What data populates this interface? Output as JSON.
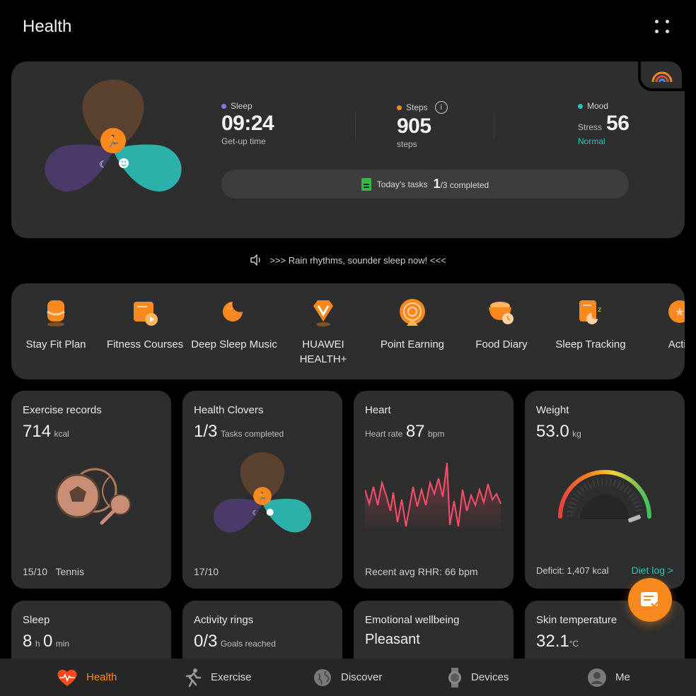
{
  "header": {
    "title": "Health"
  },
  "hero": {
    "sleep": {
      "label": "Sleep",
      "value": "09:24",
      "sub": "Get-up time",
      "color": "#8e6ff0"
    },
    "steps": {
      "label": "Steps",
      "value": "905",
      "sub": "steps",
      "color": "#f7891e"
    },
    "mood": {
      "label": "Mood",
      "stress_label": "Stress",
      "stress_value": "56",
      "status": "Normal",
      "color": "#2fc0b8"
    },
    "tasks": {
      "label": "Today's tasks",
      "count": "1",
      "suffix": "/3 completed"
    }
  },
  "promo": {
    "text": ">>> Rain rhythms, sounder sleep now! <<<"
  },
  "shortcuts": [
    {
      "label": "Stay Fit Plan",
      "icon": "body-shape-icon"
    },
    {
      "label": "Fitness Courses",
      "icon": "video-course-icon"
    },
    {
      "label": "Deep Sleep Music",
      "icon": "sleep-music-icon"
    },
    {
      "label": "HUAWEI HEALTH+",
      "icon": "health-plus-icon"
    },
    {
      "label": "Point Earning",
      "icon": "points-icon"
    },
    {
      "label": "Food Diary",
      "icon": "food-bowl-icon"
    },
    {
      "label": "Sleep Tracking",
      "icon": "sleep-tracking-icon"
    },
    {
      "label": "Activ",
      "icon": "activity-icon"
    }
  ],
  "cards": {
    "exercise": {
      "title": "Exercise records",
      "value": "714",
      "unit": "kcal",
      "date": "15/10",
      "activity": "Tennis"
    },
    "clovers": {
      "title": "Health Clovers",
      "value": "1/3",
      "unit": "Tasks completed",
      "date": "17/10"
    },
    "heart": {
      "title": "Heart",
      "label": "Heart rate",
      "value": "87",
      "unit": "bpm",
      "foot": "Recent avg RHR: 66 bpm",
      "line_color": "#ff4d6a"
    },
    "weight": {
      "title": "Weight",
      "value": "53.0",
      "unit": "kg",
      "foot": "Deficit: 1,407 kcal",
      "link": "Diet log >"
    },
    "sleep": {
      "title": "Sleep",
      "hours": "8",
      "hours_unit": "h",
      "minutes": "0",
      "minutes_unit": "min"
    },
    "rings": {
      "title": "Activity rings",
      "value": "0/3",
      "unit": "Goals reached"
    },
    "emotional": {
      "title": "Emotional wellbeing",
      "value": "Pleasant"
    },
    "skin": {
      "title": "Skin temperature",
      "value": "32.1",
      "unit": "°C"
    }
  },
  "nav": [
    {
      "label": "Health",
      "icon": "heart-pulse-icon",
      "active": true
    },
    {
      "label": "Exercise",
      "icon": "runner-icon",
      "active": false
    },
    {
      "label": "Discover",
      "icon": "globe-icon",
      "active": false
    },
    {
      "label": "Devices",
      "icon": "watch-icon",
      "active": false
    },
    {
      "label": "Me",
      "icon": "profile-icon",
      "active": false
    }
  ],
  "colors": {
    "accent": "#f7891e",
    "teal": "#2fc0b8",
    "card": "#2e2e2e"
  }
}
